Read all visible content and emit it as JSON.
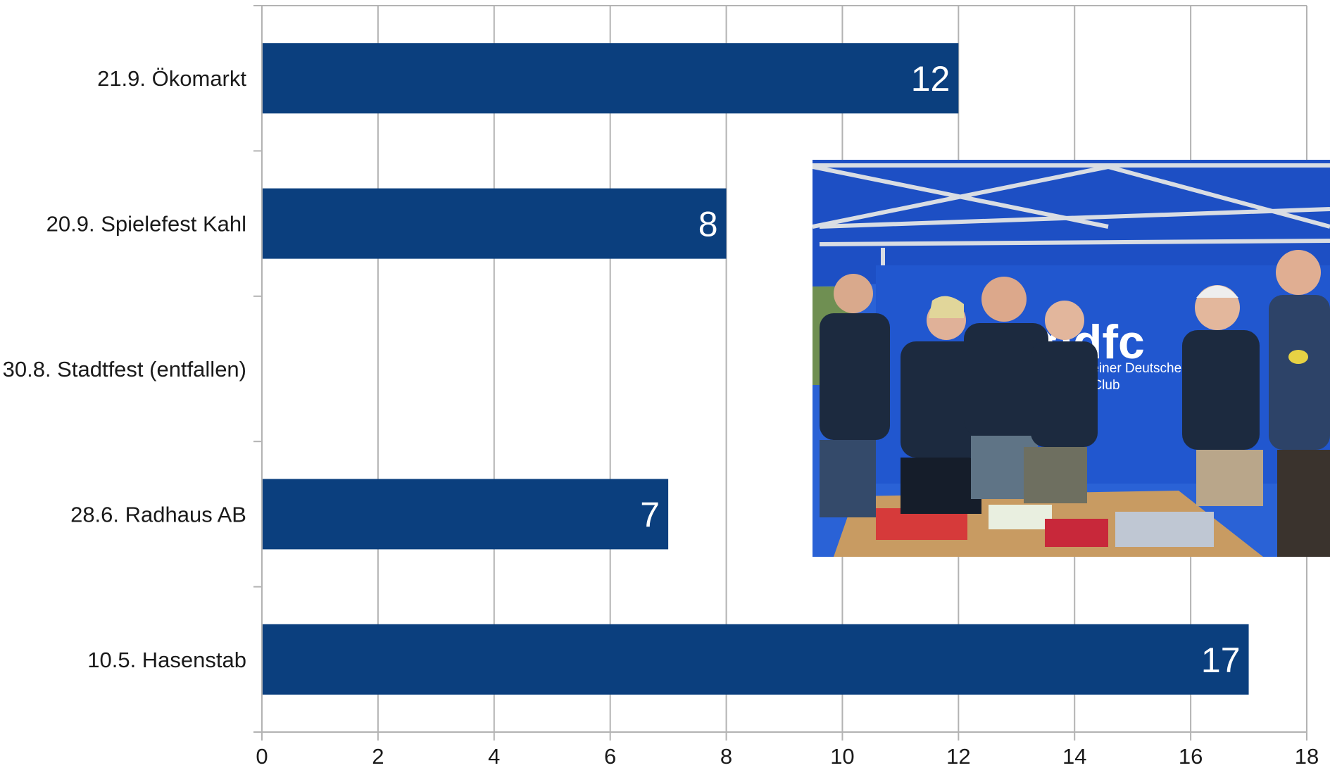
{
  "chart_data": {
    "type": "bar",
    "orientation": "horizontal",
    "categories": [
      "21.9. Ökomarkt",
      "20.9. Spielefest Kahl",
      "30.8. Stadtfest (entfallen)",
      "28.6. Radhaus AB",
      "10.5. Hasenstab"
    ],
    "values": [
      12,
      8,
      null,
      7,
      17
    ],
    "data_labels": [
      "12",
      "8",
      "",
      "7",
      "17"
    ],
    "xlim": [
      0,
      18
    ],
    "x_ticks": [
      0,
      2,
      4,
      6,
      8,
      10,
      12,
      14,
      16,
      18
    ],
    "grid": "vertical",
    "bar_color": "#0b3f7e",
    "legend": "none"
  },
  "photo": {
    "banner_brand": "adfc",
    "banner_line1": "emeiner Deutsche",
    "banner_line2": "ad-Club",
    "tent_color": "#1f55c8",
    "shirt_color": "#1c2a3f"
  }
}
